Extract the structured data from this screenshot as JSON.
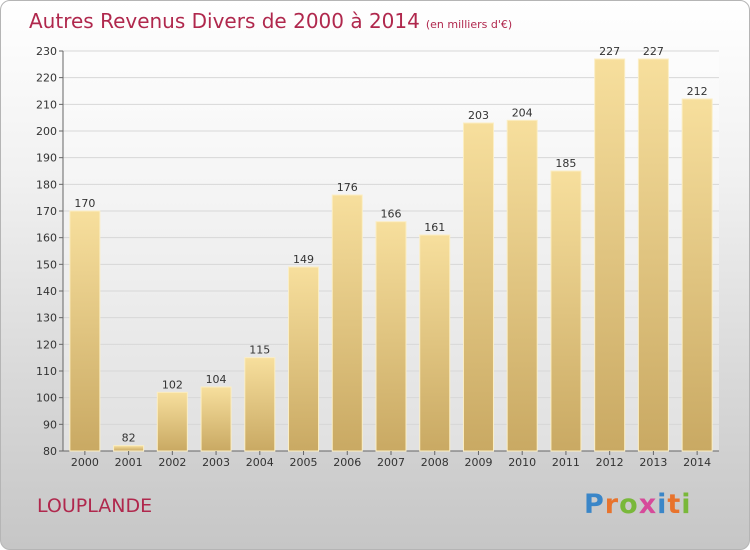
{
  "title": "Autres Revenus Divers de 2000 à 2014",
  "unit": "(en milliers d'€)",
  "place": "LOUPLANDE",
  "logo": {
    "text": "Proxiti",
    "colors": [
      "#3a86c8",
      "#e8732c",
      "#79b83a",
      "#d64a9a",
      "#3a86c8",
      "#e8732c",
      "#79b83a"
    ]
  },
  "colors": {
    "bar_top": "#f7df9d",
    "bar_bottom": "#c9a963",
    "title": "#b0284d",
    "grid": "#d7d7d7"
  },
  "chart_data": {
    "type": "bar",
    "title": "Autres Revenus Divers de 2000 à 2014",
    "categories": [
      "2000",
      "2001",
      "2002",
      "2003",
      "2004",
      "2005",
      "2006",
      "2007",
      "2008",
      "2009",
      "2010",
      "2011",
      "2012",
      "2013",
      "2014"
    ],
    "values": [
      170,
      82,
      102,
      104,
      115,
      149,
      176,
      166,
      161,
      203,
      204,
      185,
      227,
      227,
      212
    ],
    "ylim": [
      80,
      230
    ],
    "yticks": [
      80,
      90,
      100,
      110,
      120,
      130,
      140,
      150,
      160,
      170,
      180,
      190,
      200,
      210,
      220,
      230
    ],
    "grid": true
  }
}
